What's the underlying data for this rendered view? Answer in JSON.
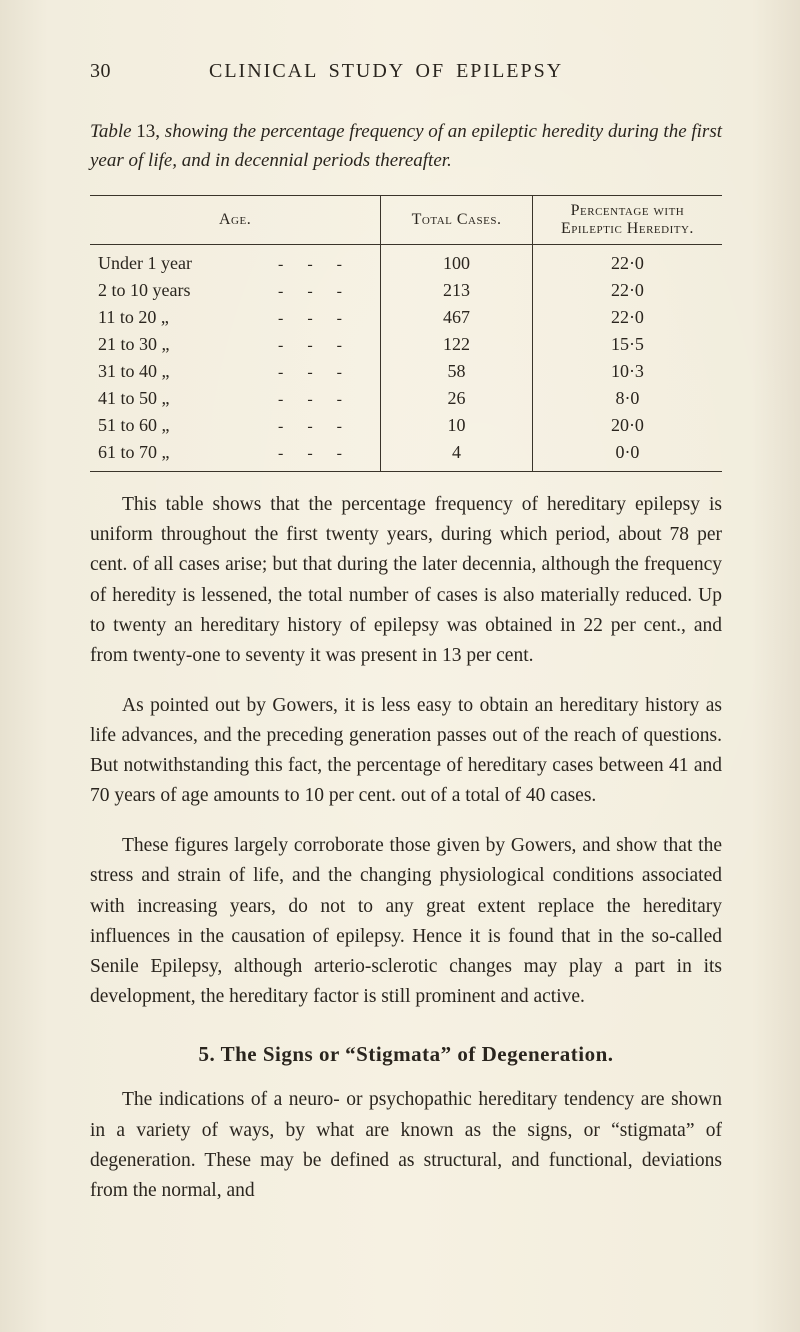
{
  "page": {
    "number": "30",
    "running_title": "CLINICAL STUDY OF EPILEPSY"
  },
  "table_caption": {
    "label": "Table",
    "number": "13,",
    "text_italic": "showing the percentage frequency of an epileptic heredity during the first year of life, and in decennial periods thereafter."
  },
  "table": {
    "columns": [
      "Age.",
      "Total Cases.",
      "Percentage with Epileptic Heredity."
    ],
    "col_widths": [
      "46%",
      "24%",
      "30%"
    ],
    "rows": [
      {
        "age_left": "Under 1 year",
        "dashes": "-   -   -",
        "cases": "100",
        "pct": "22·0"
      },
      {
        "age_left": "2 to 10 years",
        "dashes": "-   -   -",
        "cases": "213",
        "pct": "22·0"
      },
      {
        "age_left": "11 to 20   „",
        "dashes": "-   -   -",
        "cases": "467",
        "pct": "22·0"
      },
      {
        "age_left": "21 to 30   „",
        "dashes": "-   -   -",
        "cases": "122",
        "pct": "15·5"
      },
      {
        "age_left": "31 to 40   „",
        "dashes": "-   -   -",
        "cases": "58",
        "pct": "10·3"
      },
      {
        "age_left": "41 to 50   „",
        "dashes": "-   -   -",
        "cases": "26",
        "pct": "8·0"
      },
      {
        "age_left": "51 to 60   „",
        "dashes": "-   -   -",
        "cases": "10",
        "pct": "20·0"
      },
      {
        "age_left": "61 to 70   „",
        "dashes": "-   -   -",
        "cases": "4",
        "pct": "0·0"
      }
    ]
  },
  "body": {
    "p1": "This table shows that the percentage frequency of hereditary epilepsy is uniform throughout the first twenty years, during which period, about 78 per cent. of all cases arise; but that during the later decennia, although the frequency of heredity is lessened, the total number of cases is also materially reduced. Up to twenty an hereditary history of epilepsy was obtained in 22 per cent., and from twenty-one to seventy it was present in 13 per cent.",
    "p2": "As pointed out by Gowers, it is less easy to obtain an hereditary history as life advances, and the preceding generation passes out of the reach of questions. But notwithstanding this fact, the percentage of hereditary cases between 41 and 70 years of age amounts to 10 per cent. out of a total of 40 cases.",
    "p3": "These figures largely corroborate those given by Gowers, and show that the stress and strain of life, and the changing physiological conditions associated with increasing years, do not to any great extent replace the hereditary influences in the causation of epilepsy. Hence it is found that in the so-called Senile Epilepsy, although arterio-sclerotic changes may play a part in its development, the hereditary factor is still prominent and active."
  },
  "section": {
    "heading": "5. The Signs or “Stigmata” of Degeneration.",
    "p1": "The indications of a neuro- or psychopathic hereditary tendency are shown in a variety of ways, by what are known as the signs, or “stigmata” of degeneration. These may be defined as structural, and functional, deviations from the normal, and"
  },
  "styling": {
    "page_bg": "#f5f0e4",
    "text_color": "#2a251e",
    "rule_color": "#3a342a",
    "body_font_size_pt": 19.5,
    "line_height": 1.55
  }
}
